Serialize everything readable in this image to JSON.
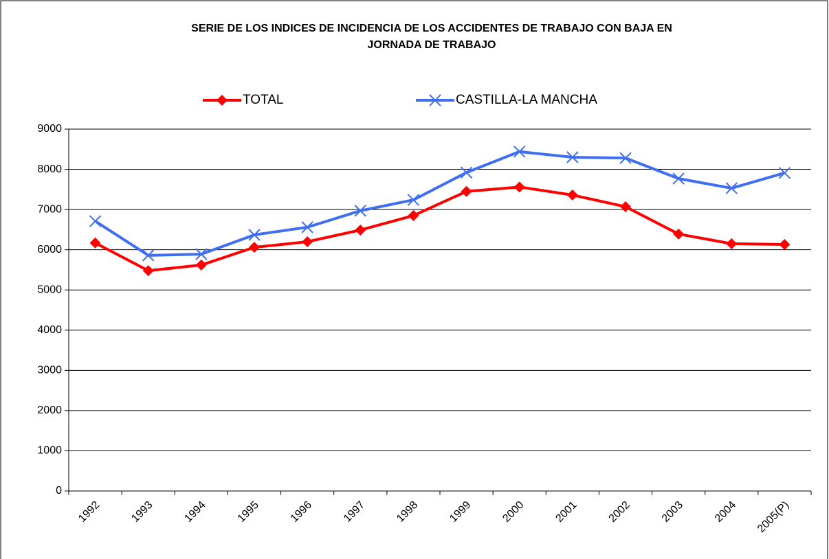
{
  "chart_data": {
    "type": "line",
    "title": [
      "SERIE DE LOS INDICES DE INCIDENCIA DE LOS ACCIDENTES DE TRABAJO CON BAJA EN",
      "JORNADA DE TRABAJO"
    ],
    "categories": [
      "1992",
      "1993",
      "1994",
      "1995",
      "1996",
      "1997",
      "1998",
      "1999",
      "2000",
      "2001",
      "2002",
      "2003",
      "2004",
      "2005(P)"
    ],
    "series": [
      {
        "name": "TOTAL",
        "color": "#ff0000",
        "marker": "diamond",
        "values": [
          6170,
          5480,
          5620,
          6060,
          6200,
          6490,
          6850,
          7450,
          7560,
          7360,
          7070,
          6390,
          6150,
          6130
        ]
      },
      {
        "name": "CASTILLA-LA MANCHA",
        "color": "#3f6ef0",
        "marker": "x",
        "values": [
          6710,
          5860,
          5890,
          6370,
          6560,
          6970,
          7240,
          7920,
          8440,
          8300,
          8280,
          7770,
          7530,
          7910
        ]
      }
    ],
    "ylim": [
      0,
      9000
    ],
    "yticks": [
      0,
      1000,
      2000,
      3000,
      4000,
      5000,
      6000,
      7000,
      8000,
      9000
    ],
    "grid": true,
    "legend": "top"
  }
}
